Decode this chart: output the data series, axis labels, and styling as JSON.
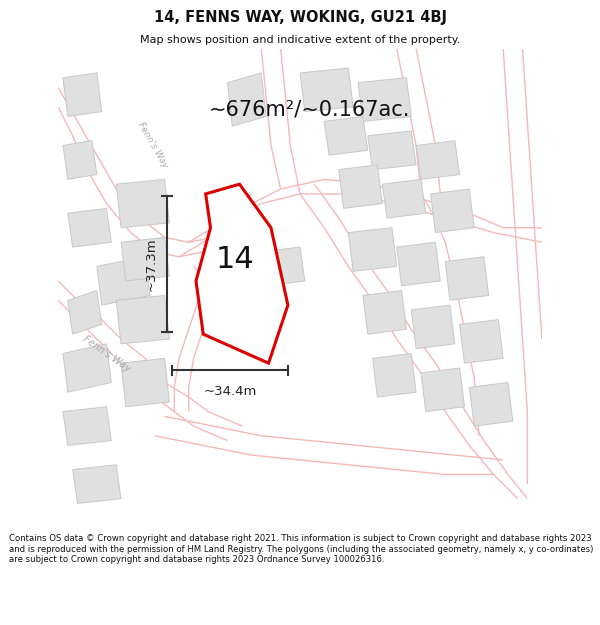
{
  "title": "14, FENNS WAY, WOKING, GU21 4BJ",
  "subtitle": "Map shows position and indicative extent of the property.",
  "area_text": "~676m²/~0.167ac.",
  "label_14": "14",
  "dim_height": "~37.3m",
  "dim_width": "~34.4m",
  "footer": "Contains OS data © Crown copyright and database right 2021. This information is subject to Crown copyright and database rights 2023 and is reproduced with the permission of HM Land Registry. The polygons (including the associated geometry, namely x, y co-ordinates) are subject to Crown copyright and database rights 2023 Ordnance Survey 100026316.",
  "map_bg": "#ffffff",
  "road_color": "#f5b8b8",
  "road_lw": 1.2,
  "building_color": "#e0e0e0",
  "building_edge": "#c8c8c8",
  "property_color": "#dd0000",
  "property_fill": "white",
  "title_color": "#111111",
  "footer_color": "#111111",
  "dim_color": "#222222",
  "area_color": "#111111",
  "street_color": "#aaaaaa"
}
